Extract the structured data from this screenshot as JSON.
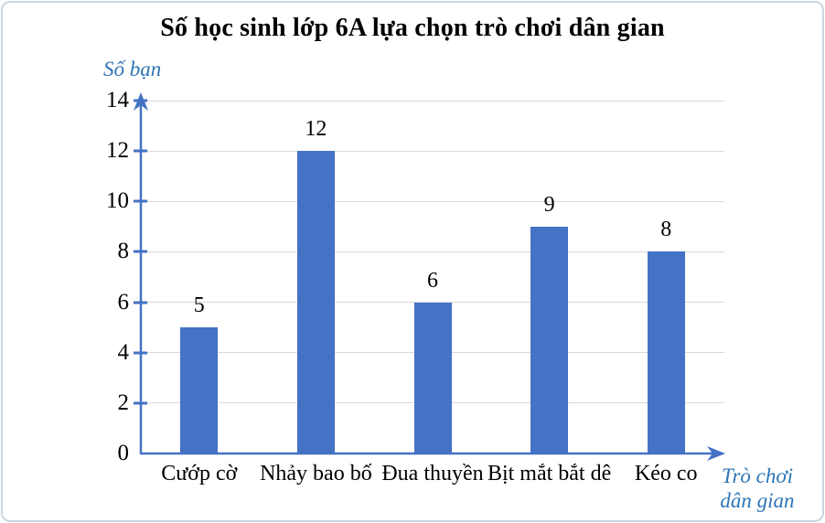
{
  "chart_data": {
    "type": "bar",
    "title": "Số học sinh lớp 6A lựa chọn trò chơi dân gian",
    "ylabel": "Số bạn",
    "xlabel": "Trò chơi dân gian",
    "categories": [
      "Cướp cờ",
      "Nhảy bao bố",
      "Đua thuyền",
      "Bịt mắt bắt dê",
      "Kéo co"
    ],
    "values": [
      5,
      12,
      6,
      9,
      8
    ],
    "data_labels": [
      "5",
      "12",
      "6",
      "9",
      "8"
    ],
    "ylim": [
      0,
      14
    ],
    "ytick_step": 2,
    "yticks": [
      "0",
      "2",
      "4",
      "6",
      "8",
      "10",
      "12",
      "14"
    ],
    "grid": true,
    "legend": "none",
    "colors": {
      "bar": "#4472C4",
      "axis": "#4472C4",
      "grid": "#d9d9d9",
      "axis_title_text": "#2E75B6",
      "tick_text": "#000000"
    }
  }
}
